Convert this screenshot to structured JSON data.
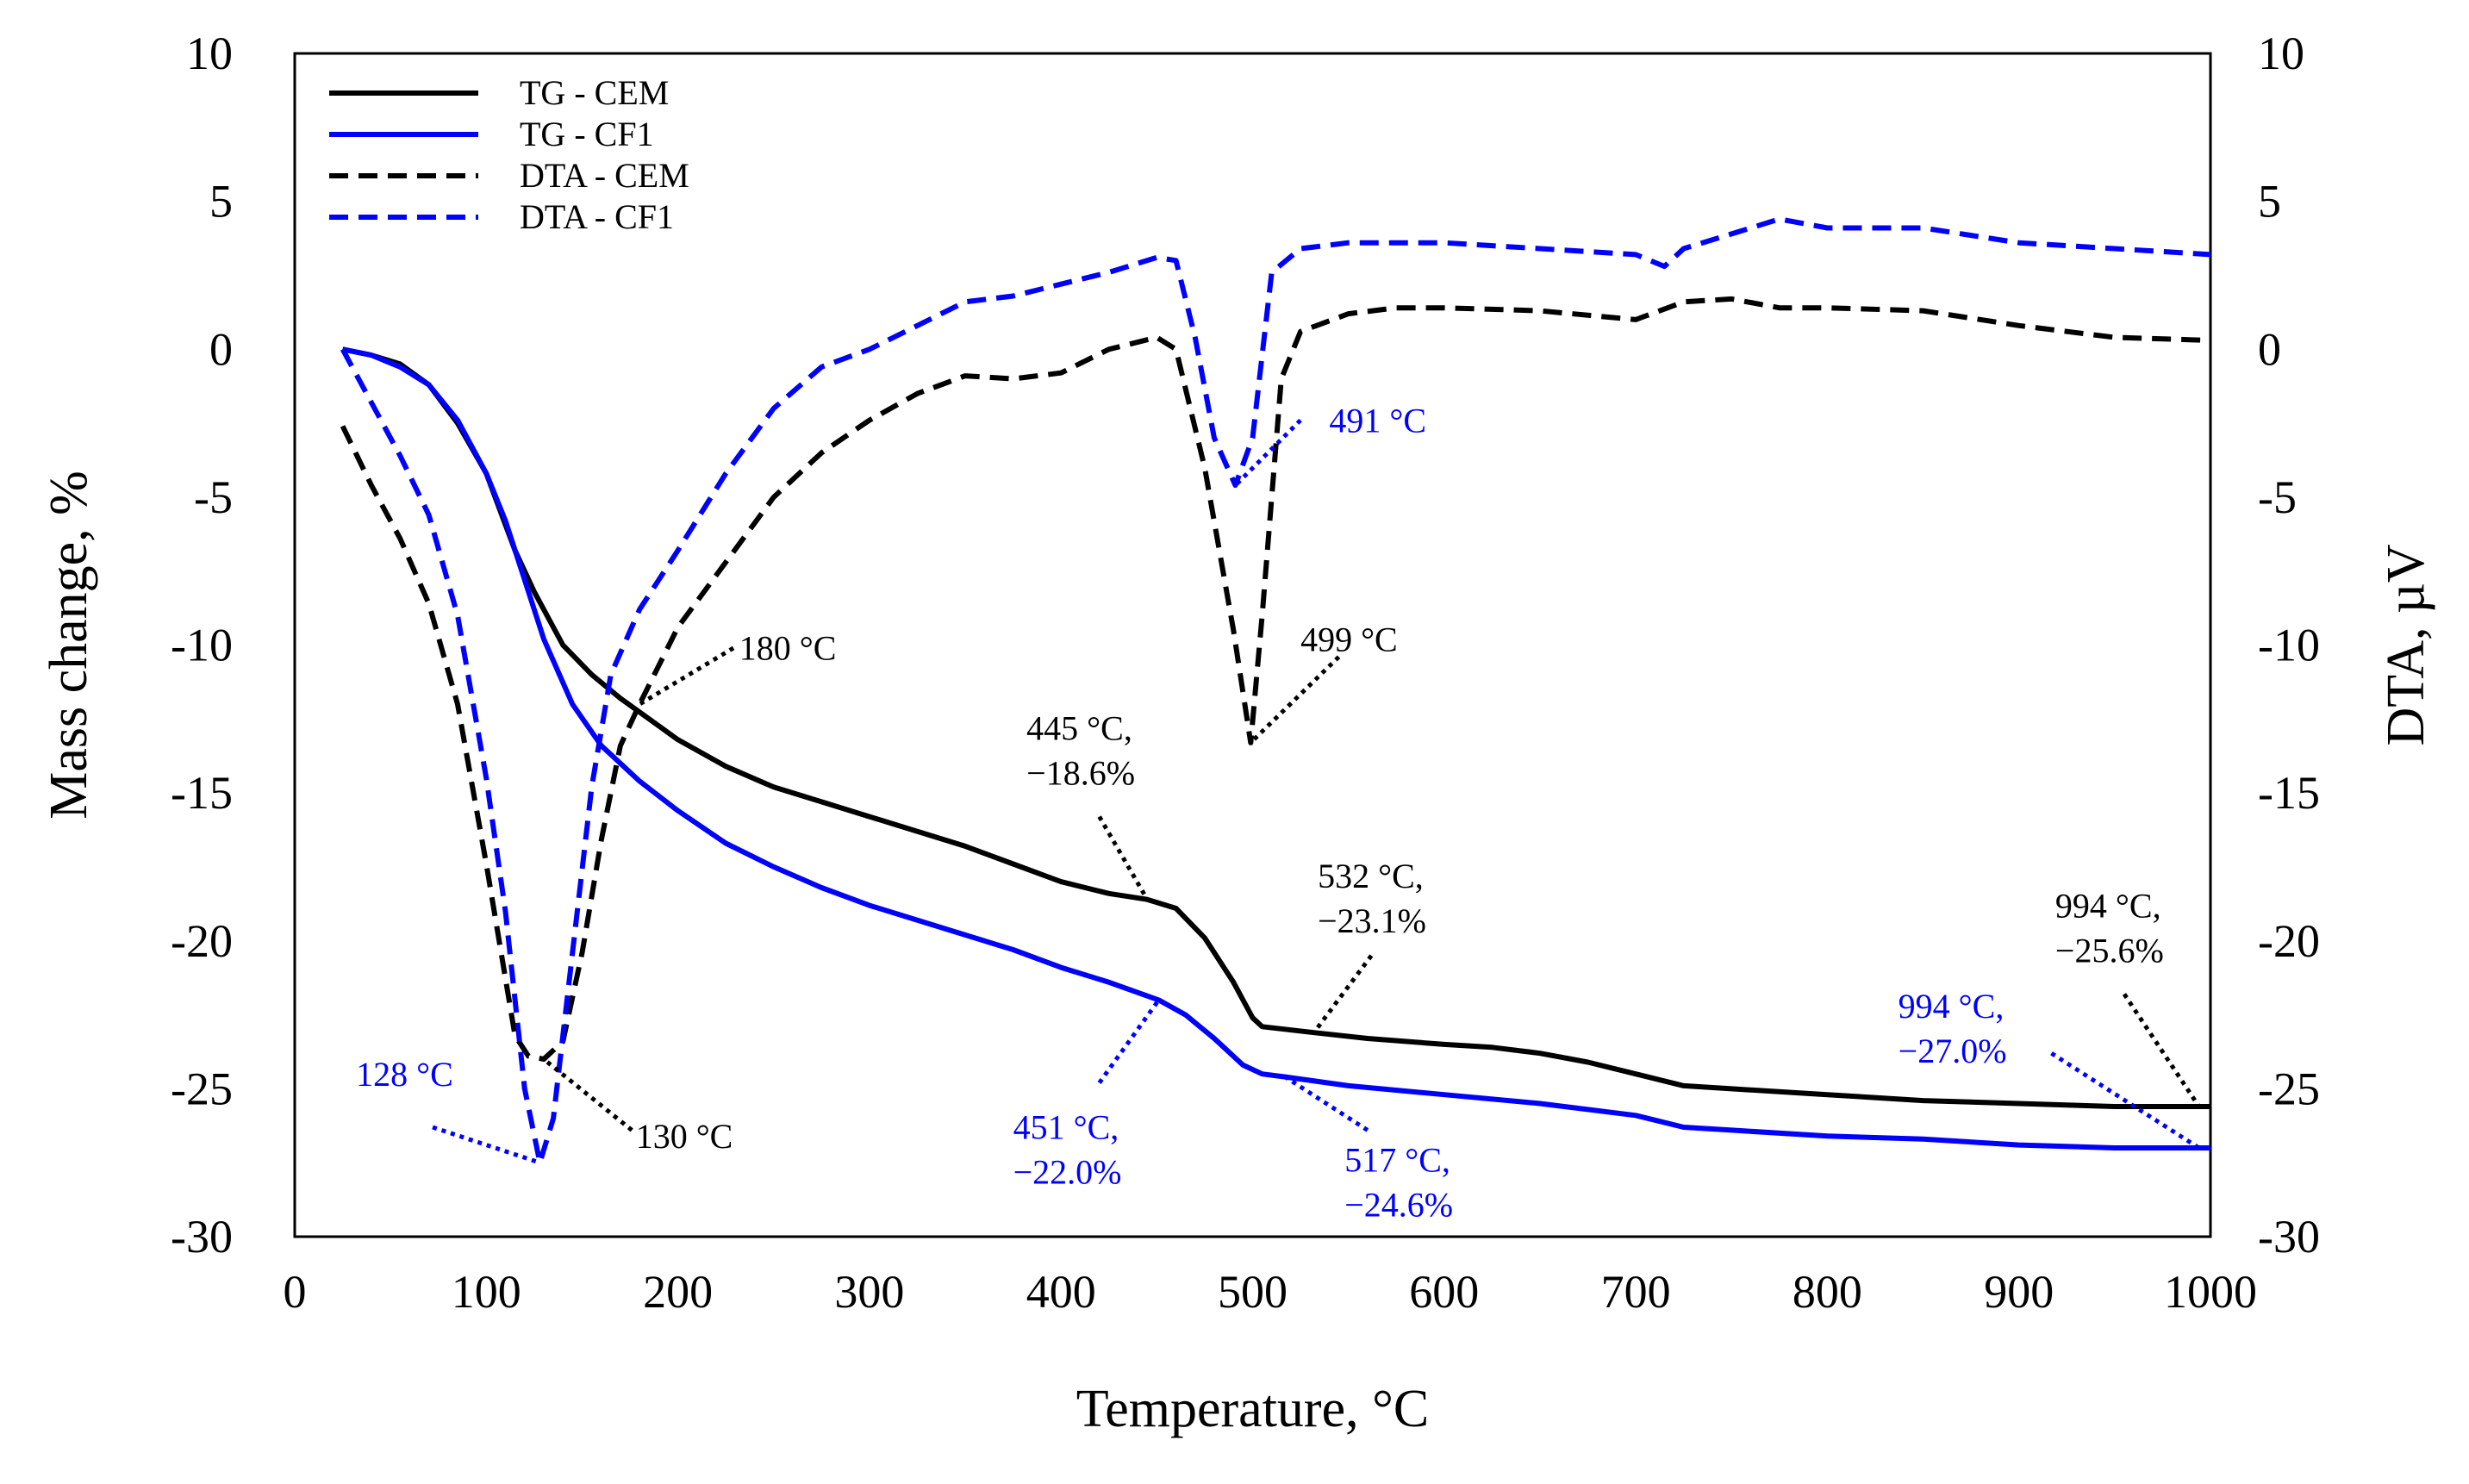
{
  "chart_data": {
    "type": "line",
    "title": "",
    "xlabel": "Temperature, °C",
    "ylabel": "Mass change, %",
    "y2label": "DTA, µV",
    "xlim": [
      0,
      1000
    ],
    "ylim": [
      -30,
      10
    ],
    "y2lim": [
      -30,
      10
    ],
    "xticks": [
      "0",
      "100",
      "200",
      "300",
      "400",
      "500",
      "600",
      "700",
      "800",
      "900",
      "1000"
    ],
    "yticks": [
      "10",
      "5",
      "0",
      "-5",
      "-10",
      "-15",
      "-20",
      "-25",
      "-30"
    ],
    "y2ticks": [
      "10",
      "5",
      "0",
      "-5",
      "-10",
      "-15",
      "-20",
      "-25",
      "-30"
    ],
    "legend_position": "top-left",
    "colors": {
      "black": "#000000",
      "blue": "#0000ff"
    },
    "series": [
      {
        "name": "TG - CEM",
        "axis": "left",
        "color": "#000000",
        "dash": "solid",
        "points": [
          [
            25,
            0
          ],
          [
            40,
            -0.2
          ],
          [
            55,
            -0.5
          ],
          [
            70,
            -1.2
          ],
          [
            85,
            -2.5
          ],
          [
            100,
            -4.2
          ],
          [
            115,
            -6.8
          ],
          [
            125,
            -8.2
          ],
          [
            140,
            -10.0
          ],
          [
            155,
            -11.0
          ],
          [
            170,
            -11.8
          ],
          [
            185,
            -12.5
          ],
          [
            200,
            -13.2
          ],
          [
            225,
            -14.1
          ],
          [
            250,
            -14.8
          ],
          [
            275,
            -15.3
          ],
          [
            300,
            -15.8
          ],
          [
            325,
            -16.3
          ],
          [
            350,
            -16.8
          ],
          [
            375,
            -17.4
          ],
          [
            400,
            -18.0
          ],
          [
            425,
            -18.4
          ],
          [
            445,
            -18.6
          ],
          [
            460,
            -18.9
          ],
          [
            475,
            -19.9
          ],
          [
            490,
            -21.4
          ],
          [
            500,
            -22.6
          ],
          [
            505,
            -22.9
          ],
          [
            532,
            -23.1
          ],
          [
            560,
            -23.3
          ],
          [
            600,
            -23.5
          ],
          [
            625,
            -23.6
          ],
          [
            650,
            -23.8
          ],
          [
            675,
            -24.1
          ],
          [
            700,
            -24.5
          ],
          [
            725,
            -24.9
          ],
          [
            750,
            -25.0
          ],
          [
            800,
            -25.2
          ],
          [
            850,
            -25.4
          ],
          [
            900,
            -25.5
          ],
          [
            950,
            -25.6
          ],
          [
            994,
            -25.6
          ],
          [
            1000,
            -25.6
          ]
        ]
      },
      {
        "name": "TG - CF1",
        "axis": "left",
        "color": "#0000ff",
        "dash": "solid",
        "points": [
          [
            25,
            0
          ],
          [
            40,
            -0.2
          ],
          [
            55,
            -0.6
          ],
          [
            70,
            -1.2
          ],
          [
            85,
            -2.4
          ],
          [
            100,
            -4.2
          ],
          [
            110,
            -5.8
          ],
          [
            120,
            -7.8
          ],
          [
            130,
            -9.8
          ],
          [
            145,
            -12.0
          ],
          [
            160,
            -13.4
          ],
          [
            180,
            -14.6
          ],
          [
            200,
            -15.6
          ],
          [
            225,
            -16.7
          ],
          [
            250,
            -17.5
          ],
          [
            275,
            -18.2
          ],
          [
            300,
            -18.8
          ],
          [
            325,
            -19.3
          ],
          [
            350,
            -19.8
          ],
          [
            375,
            -20.3
          ],
          [
            400,
            -20.9
          ],
          [
            425,
            -21.4
          ],
          [
            451,
            -22.0
          ],
          [
            465,
            -22.5
          ],
          [
            480,
            -23.3
          ],
          [
            495,
            -24.2
          ],
          [
            505,
            -24.5
          ],
          [
            517,
            -24.6
          ],
          [
            550,
            -24.9
          ],
          [
            600,
            -25.2
          ],
          [
            650,
            -25.5
          ],
          [
            700,
            -25.9
          ],
          [
            725,
            -26.3
          ],
          [
            750,
            -26.4
          ],
          [
            800,
            -26.6
          ],
          [
            850,
            -26.7
          ],
          [
            900,
            -26.9
          ],
          [
            950,
            -27.0
          ],
          [
            994,
            -27.0
          ],
          [
            1000,
            -27.0
          ]
        ]
      },
      {
        "name": "DTA - CEM",
        "axis": "right",
        "color": "#000000",
        "dash": "dashed",
        "points": [
          [
            25,
            -2.6
          ],
          [
            40,
            -4.6
          ],
          [
            55,
            -6.4
          ],
          [
            70,
            -8.6
          ],
          [
            85,
            -12.0
          ],
          [
            100,
            -17.4
          ],
          [
            115,
            -23.2
          ],
          [
            122,
            -23.9
          ],
          [
            130,
            -24.0
          ],
          [
            140,
            -23.4
          ],
          [
            150,
            -20.4
          ],
          [
            160,
            -16.6
          ],
          [
            170,
            -13.4
          ],
          [
            180,
            -12.0
          ],
          [
            200,
            -9.4
          ],
          [
            225,
            -7.2
          ],
          [
            250,
            -5.0
          ],
          [
            275,
            -3.5
          ],
          [
            300,
            -2.4
          ],
          [
            325,
            -1.5
          ],
          [
            350,
            -0.9
          ],
          [
            375,
            -1.0
          ],
          [
            400,
            -0.8
          ],
          [
            425,
            0.0
          ],
          [
            450,
            0.4
          ],
          [
            460,
            0.0
          ],
          [
            475,
            -4.0
          ],
          [
            490,
            -9.5
          ],
          [
            499,
            -13.3
          ],
          [
            505,
            -9.0
          ],
          [
            515,
            -1.0
          ],
          [
            525,
            0.6
          ],
          [
            550,
            1.2
          ],
          [
            575,
            1.4
          ],
          [
            600,
            1.4
          ],
          [
            650,
            1.3
          ],
          [
            700,
            1.0
          ],
          [
            725,
            1.6
          ],
          [
            750,
            1.7
          ],
          [
            775,
            1.4
          ],
          [
            800,
            1.4
          ],
          [
            850,
            1.3
          ],
          [
            900,
            0.8
          ],
          [
            950,
            0.4
          ],
          [
            1000,
            0.3
          ]
        ]
      },
      {
        "name": "DTA - CF1",
        "axis": "right",
        "color": "#0000ff",
        "dash": "dashed",
        "points": [
          [
            25,
            0.0
          ],
          [
            40,
            -1.8
          ],
          [
            55,
            -3.6
          ],
          [
            70,
            -5.6
          ],
          [
            85,
            -9.0
          ],
          [
            100,
            -14.5
          ],
          [
            110,
            -19.0
          ],
          [
            120,
            -25.0
          ],
          [
            128,
            -27.5
          ],
          [
            135,
            -26.0
          ],
          [
            145,
            -20.4
          ],
          [
            155,
            -14.8
          ],
          [
            165,
            -11.0
          ],
          [
            180,
            -8.8
          ],
          [
            200,
            -6.8
          ],
          [
            225,
            -4.2
          ],
          [
            250,
            -2.0
          ],
          [
            275,
            -0.6
          ],
          [
            300,
            0.0
          ],
          [
            325,
            0.8
          ],
          [
            350,
            1.6
          ],
          [
            375,
            1.8
          ],
          [
            400,
            2.2
          ],
          [
            425,
            2.6
          ],
          [
            450,
            3.1
          ],
          [
            460,
            3.0
          ],
          [
            470,
            0.4
          ],
          [
            480,
            -3.0
          ],
          [
            491,
            -4.6
          ],
          [
            500,
            -3.0
          ],
          [
            510,
            2.6
          ],
          [
            525,
            3.4
          ],
          [
            550,
            3.6
          ],
          [
            600,
            3.6
          ],
          [
            650,
            3.4
          ],
          [
            700,
            3.2
          ],
          [
            715,
            2.8
          ],
          [
            725,
            3.4
          ],
          [
            750,
            3.9
          ],
          [
            775,
            4.4
          ],
          [
            800,
            4.1
          ],
          [
            850,
            4.1
          ],
          [
            900,
            3.6
          ],
          [
            950,
            3.4
          ],
          [
            1000,
            3.2
          ]
        ]
      }
    ],
    "annotations": [
      {
        "text": "491 °C",
        "color": "#0000ff",
        "point": [
          491,
          -4.6
        ],
        "label_at": [
          540,
          -2.8
        ],
        "line_to": [
          525,
          -2.4
        ],
        "line_color": "#0000ff"
      },
      {
        "text": "499 °C",
        "color": "#000000",
        "point": [
          499,
          -13.3
        ],
        "label_at": [
          525,
          -10.2
        ],
        "line_to": [
          545,
          -10.4
        ],
        "line_color": "#000000"
      },
      {
        "text": "180 °C",
        "color": "#000000",
        "point": [
          180,
          -12.0
        ],
        "label_at": [
          232,
          -10.5
        ],
        "line_to": [
          229,
          -10.1
        ],
        "line_color": "#000000"
      },
      {
        "text": "130 °C",
        "color": "#000000",
        "point": [
          130,
          -24.0
        ],
        "label_at": [
          178,
          -27.0
        ],
        "line_to": [
          176,
          -26.4
        ],
        "line_color": "#000000"
      },
      {
        "text": "128 °C",
        "color": "#0000ff",
        "point": [
          128,
          -27.5
        ],
        "label_at": [
          32,
          -24.9
        ],
        "line_to": [
          72,
          -26.3
        ],
        "line_color": "#0000ff"
      },
      {
        "text": "445 °C,",
        "text2": "−18.6%",
        "color": "#000000",
        "point": [
          445,
          -18.6
        ],
        "label_at": [
          382,
          -13.2
        ],
        "line_to": [
          420,
          -15.8
        ],
        "line_color": "#000000"
      },
      {
        "text": "451 °C,",
        "text2": "−22.0%",
        "color": "#0000ff",
        "point": [
          451,
          -22.0
        ],
        "label_at": [
          375,
          -26.7
        ],
        "line_to": [
          420,
          -24.8
        ],
        "line_color": "#0000ff"
      },
      {
        "text": "532 °C,",
        "text2": "−23.1%",
        "color": "#000000",
        "point": [
          532,
          -23.1
        ],
        "label_at": [
          534,
          -18.2
        ],
        "line_to": [
          562,
          -20.5
        ],
        "line_color": "#000000"
      },
      {
        "text": "517 °C,",
        "text2": "−24.6%",
        "color": "#0000ff",
        "point": [
          517,
          -24.6
        ],
        "label_at": [
          548,
          -27.8
        ],
        "line_to": [
          560,
          -26.4
        ],
        "line_color": "#0000ff"
      },
      {
        "text": "994 °C,",
        "text2": "−25.6%",
        "color": "#000000",
        "point": [
          994,
          -25.6
        ],
        "label_at": [
          919,
          -19.2
        ],
        "line_to": [
          955,
          -21.8
        ],
        "line_color": "#000000"
      },
      {
        "text": "994 °C,",
        "text2": "−27.0%",
        "color": "#0000ff",
        "point": [
          994,
          -27.0
        ],
        "label_at": [
          837,
          -22.6
        ],
        "line_to": [
          917,
          -23.8
        ],
        "line_color": "#0000ff"
      }
    ]
  }
}
